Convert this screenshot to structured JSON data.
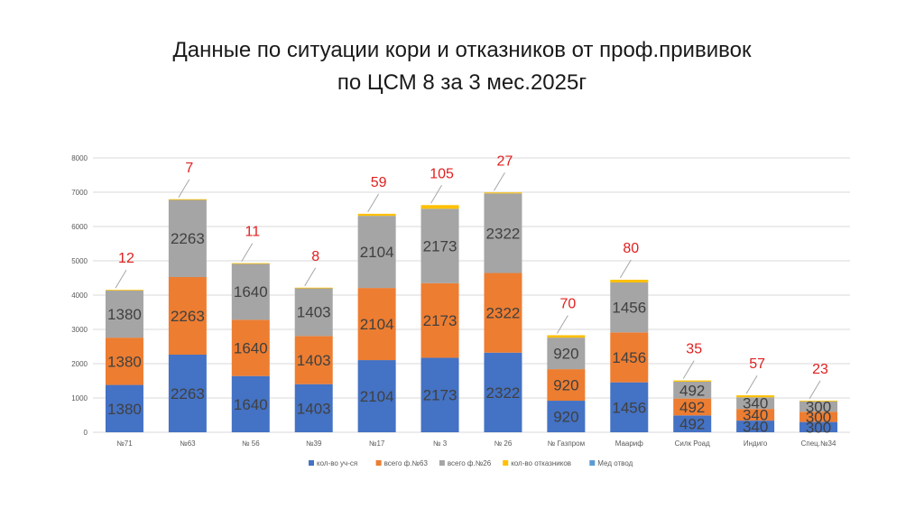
{
  "title_line1": "Данные по ситуации кори и отказников от проф.прививок",
  "title_line2": "по ЦСМ 8 за 3 мес.2025г",
  "chart_data": {
    "type": "bar",
    "stacked": true,
    "categories": [
      "№71",
      "№63",
      "№ 56",
      "№39",
      "№17",
      "№ 3",
      "№ 26",
      "№ Газпром",
      "Маариф",
      "Силк Роад",
      "Индиго",
      "Спец.№34"
    ],
    "series": [
      {
        "name": "кол-во уч-ся",
        "color": "#4472c4",
        "values": [
          1380,
          2263,
          1640,
          1403,
          2104,
          2173,
          2322,
          920,
          1456,
          492,
          340,
          300
        ]
      },
      {
        "name": "всего ф.№63",
        "color": "#ed7d31",
        "values": [
          1380,
          2263,
          1640,
          1403,
          2104,
          2173,
          2322,
          920,
          1456,
          492,
          340,
          300
        ]
      },
      {
        "name": "всего ф.№26",
        "color": "#a5a5a5",
        "values": [
          1380,
          2263,
          1640,
          1403,
          2104,
          2173,
          2322,
          920,
          1456,
          492,
          340,
          300
        ]
      },
      {
        "name": "кол-во отказников",
        "color": "#ffc000",
        "values": [
          12,
          7,
          11,
          8,
          59,
          105,
          27,
          70,
          80,
          35,
          57,
          23
        ]
      },
      {
        "name": "Мед отвод",
        "color": "#5b9bd5",
        "values": [
          0,
          0,
          0,
          0,
          0,
          0,
          0,
          0,
          0,
          0,
          0,
          0
        ]
      }
    ],
    "ylim": [
      0,
      8000
    ],
    "yticks": [
      "0",
      "1000",
      "2000",
      "3000",
      "4000",
      "5000",
      "6000",
      "7000",
      "8000"
    ],
    "grid": true,
    "legend_position": "bottom"
  }
}
